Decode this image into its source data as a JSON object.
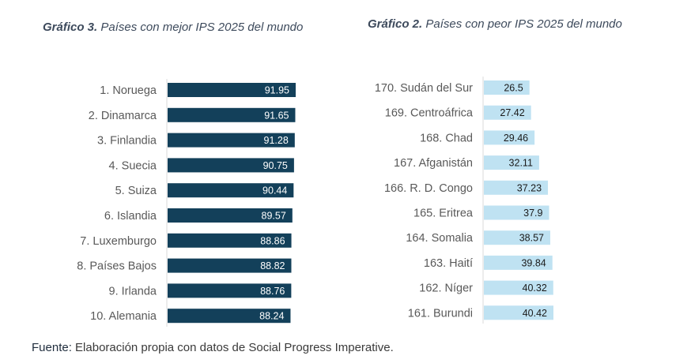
{
  "source": {
    "label": "Fuente:",
    "text": "Elaboración propia con datos de Social Progress Imperative."
  },
  "colors": {
    "left_bar": "#13405a",
    "right_bar": "#bfe2f2",
    "label_text": "#595959",
    "title_text": "#3d4a5c"
  },
  "chart_data": [
    {
      "type": "bar",
      "orientation": "horizontal",
      "title_prefix": "Gráfico 3.",
      "title": "Países con mejor IPS 2025 del mundo",
      "categories": [
        "1. Noruega",
        "2. Dinamarca",
        "3. Finlandia",
        "4. Suecia",
        "5. Suiza",
        "6. Islandia",
        "7. Luxemburgo",
        "8. Países Bajos",
        "9. Irlanda",
        "10. Alemania"
      ],
      "values": [
        91.95,
        91.65,
        91.28,
        90.75,
        90.44,
        89.57,
        88.86,
        88.82,
        88.76,
        88.24
      ],
      "value_labels": [
        "91.95",
        "91.65",
        "91.28",
        "90.75",
        "90.44",
        "89.57",
        "88.86",
        "88.82",
        "88.76",
        "88.24"
      ],
      "xlim": [
        0,
        91.95
      ],
      "grid": false,
      "legend": "none"
    },
    {
      "type": "bar",
      "orientation": "horizontal",
      "title_prefix": "Gráfico 2.",
      "title": "Países con peor IPS 2025 del mundo",
      "categories": [
        "170. Sudán del Sur",
        "169. Centroáfrica",
        "168. Chad",
        "167. Afganistán",
        "166. R. D. Congo",
        "165. Eritrea",
        "164. Somalia",
        "163. Haití",
        "162. Níger",
        "161. Burundi"
      ],
      "values": [
        26.5,
        27.42,
        29.46,
        32.11,
        37.23,
        37.9,
        38.57,
        39.84,
        40.32,
        40.42
      ],
      "value_labels": [
        "26.5",
        "27.42",
        "29.46",
        "32.11",
        "37.23",
        "37.9",
        "38.57",
        "39.84",
        "40.32",
        "40.42"
      ],
      "xlim": [
        0,
        40.42
      ],
      "grid": false,
      "legend": "none"
    }
  ]
}
